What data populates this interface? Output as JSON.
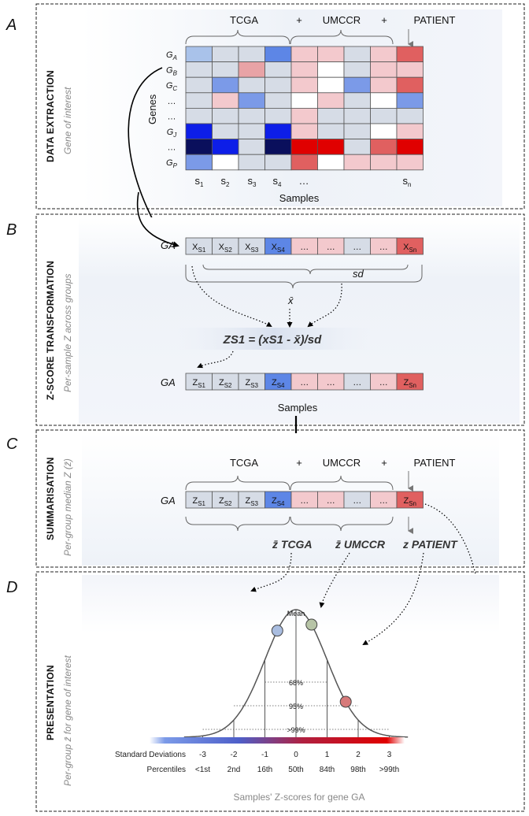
{
  "panels": [
    {
      "letter": "A",
      "title": "DATA EXTRACTION",
      "subtitle": "Gene of interest"
    },
    {
      "letter": "B",
      "title": "Z-SCORE TRANSFORMATION",
      "subtitle": "Per-sample Z across groups"
    },
    {
      "letter": "C",
      "title": "SUMMARISATION",
      "subtitle": "Per-group median Z (z̄)"
    },
    {
      "letter": "D",
      "title": "PRESENTATION",
      "subtitle": "Per-group z̄ for gene of interest"
    }
  ],
  "group_header": {
    "g1": "TCGA",
    "plus1": "+",
    "g2": "UMCCR",
    "plus2": "+",
    "g3": "PATIENT"
  },
  "panel_a": {
    "genes_label": "Genes",
    "samples_label": "Samples",
    "row_labels": [
      "GA",
      "GB",
      "GC",
      "…",
      "…",
      "GJ",
      "…",
      "GP"
    ],
    "col_labels": [
      "s1",
      "s2",
      "s3",
      "s4",
      "…",
      "sn"
    ],
    "heatmap_colors": [
      [
        "#a9c2ea",
        "#d6dce6",
        "#d6dce6",
        "#5d86e6",
        "#f3c9cd",
        "#f3c9cd",
        "#d6dce6",
        "#f3c9cd",
        "#e06060"
      ],
      [
        "#d6dce6",
        "#d6dce6",
        "#e8a3a6",
        "#d6dce6",
        "#f3c9cd",
        "#ffffff",
        "#d6dce6",
        "#f3c9cd",
        "#f3c9cd"
      ],
      [
        "#d6dce6",
        "#7b9ae8",
        "#d6dce6",
        "#d6dce6",
        "#f3c9cd",
        "#ffffff",
        "#7b9ae8",
        "#f3c9cd",
        "#e06060"
      ],
      [
        "#d6dce6",
        "#f3c9cd",
        "#7b9ae8",
        "#d6dce6",
        "#ffffff",
        "#f3c9cd",
        "#d6dce6",
        "#ffffff",
        "#7b9ae8"
      ],
      [
        "#d6dce6",
        "#d6dce6",
        "#d6dce6",
        "#d6dce6",
        "#f3c9cd",
        "#d6dce6",
        "#d6dce6",
        "#d6dce6",
        "#d6dce6"
      ],
      [
        "#0d1ee8",
        "#d6dce6",
        "#d6dce6",
        "#0d1ee8",
        "#f3c9cd",
        "#d6dce6",
        "#d6dce6",
        "#ffffff",
        "#f3c9cd"
      ],
      [
        "#0a0f5c",
        "#0d1ee8",
        "#d6dce6",
        "#0a0f5c",
        "#e00000",
        "#e00000",
        "#d6dce6",
        "#e06060",
        "#e00000"
      ],
      [
        "#7b9ae8",
        "#ffffff",
        "#d6dce6",
        "#d6dce6",
        "#e06060",
        "#ffffff",
        "#f3c9cd",
        "#f3c9cd",
        "#f3c9cd"
      ]
    ]
  },
  "panel_b": {
    "gene": "GA",
    "x_cells": [
      "XS1",
      "XS2",
      "XS3",
      "XS4",
      "…",
      "…",
      "…",
      "…",
      "XSn"
    ],
    "sd_label": "sd",
    "xbar_label": "x̄",
    "formula": "ZS1 = (xS1 - x̄)/sd",
    "z_cells": [
      "ZS1",
      "ZS2",
      "ZS3",
      "ZS4",
      "…",
      "…",
      "…",
      "…",
      "ZSn"
    ],
    "samples_label": "Samples"
  },
  "panel_c": {
    "gene": "GA",
    "z_cells": [
      "ZS1",
      "ZS2",
      "ZS3",
      "ZS4",
      "…",
      "…",
      "…",
      "…",
      "ZSn"
    ],
    "z_tcga": "z̄ TCGA",
    "z_umccr": "z̄ UMCCR",
    "z_patient": "z PATIENT"
  },
  "panel_d": {
    "mean_label": "Mean",
    "pct_68": "68%",
    "pct_95": "95%",
    "pct_99": ">99%",
    "sd_row_label": "Standard Deviations",
    "sd_values": [
      "-3",
      "-2",
      "-1",
      "0",
      "1",
      "2",
      "3"
    ],
    "percentile_row_label": "Percentiles",
    "percentiles": [
      "<1st",
      "2nd",
      "16th",
      "50th",
      "84th",
      "98th",
      ">99th"
    ],
    "footer": "Samples' Z-scores for gene GA",
    "markers": [
      {
        "group": "TCGA",
        "sd_value": -0.6,
        "color": "#a9bde0"
      },
      {
        "group": "UMCCR",
        "sd_value": 0.5,
        "color": "#b7c4a6"
      },
      {
        "group": "PATIENT",
        "sd_value": 1.6,
        "color": "#d77a7a"
      }
    ]
  }
}
